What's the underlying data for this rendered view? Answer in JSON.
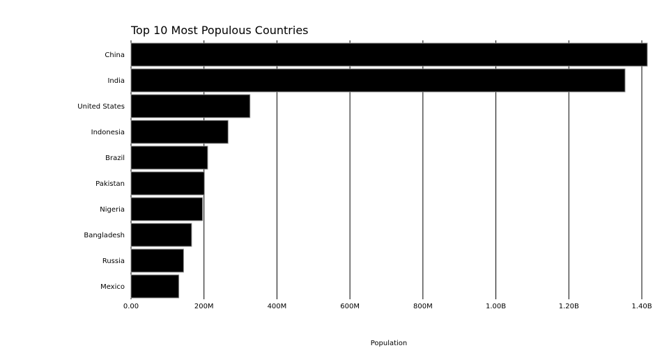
{
  "chart_data": {
    "type": "bar",
    "orientation": "horizontal",
    "title": "Top 10 Most Populous Countries",
    "xlabel": "Population",
    "ylabel": "",
    "categories": [
      "China",
      "India",
      "United States",
      "Indonesia",
      "Brazil",
      "Pakistan",
      "Nigeria",
      "Bangladesh",
      "Russia",
      "Mexico"
    ],
    "values": [
      1415000000,
      1354000000,
      326000000,
      266000000,
      210000000,
      201000000,
      196000000,
      166000000,
      144000000,
      131000000
    ],
    "xlim": [
      0,
      1400000000
    ],
    "xticks": [
      0,
      200000000,
      400000000,
      600000000,
      800000000,
      1000000000,
      1200000000,
      1400000000
    ],
    "xtick_labels": [
      "0.00",
      "200M",
      "400M",
      "600M",
      "800M",
      "1.00B",
      "1.20B",
      "1.40B"
    ],
    "grid": "vertical",
    "bar_color": "#000000",
    "bar_stroke": "#888888",
    "grid_color": "#000000"
  }
}
